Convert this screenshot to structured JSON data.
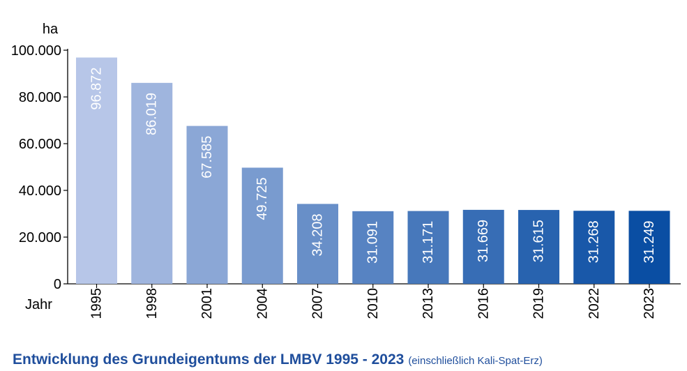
{
  "chart_data": {
    "type": "bar",
    "unit_label": "ha",
    "xlabel": "Jahr",
    "categories": [
      "1995",
      "1998",
      "2001",
      "2004",
      "2007",
      "2010",
      "2013",
      "2016",
      "2019",
      "2022",
      "2023"
    ],
    "values": [
      96872,
      86019,
      67585,
      49725,
      34208,
      31091,
      31171,
      31669,
      31615,
      31268,
      31249
    ],
    "value_labels": [
      "96.872",
      "86.019",
      "67.585",
      "49.725",
      "34.208",
      "31.091",
      "31.171",
      "31.669",
      "31.615",
      "31.268",
      "31.249"
    ],
    "yticks": [
      0,
      20000,
      40000,
      60000,
      80000,
      100000
    ],
    "ytick_labels": [
      "0",
      "20.000",
      "40.000",
      "60.000",
      "80.000",
      "100.000"
    ],
    "ylim": [
      0,
      100000
    ],
    "grid": false,
    "title": "Entwicklung des Grundeigentums der LMBV 1995 - 2023",
    "subtitle": "(einschließlich Kali-Spat-Erz)",
    "colors": {
      "bar_start": "#b7c6e8",
      "bar_end": "#0a4ea3",
      "axis": "#000000",
      "title": "#1f4e9c",
      "value_label": "#ffffff"
    }
  }
}
